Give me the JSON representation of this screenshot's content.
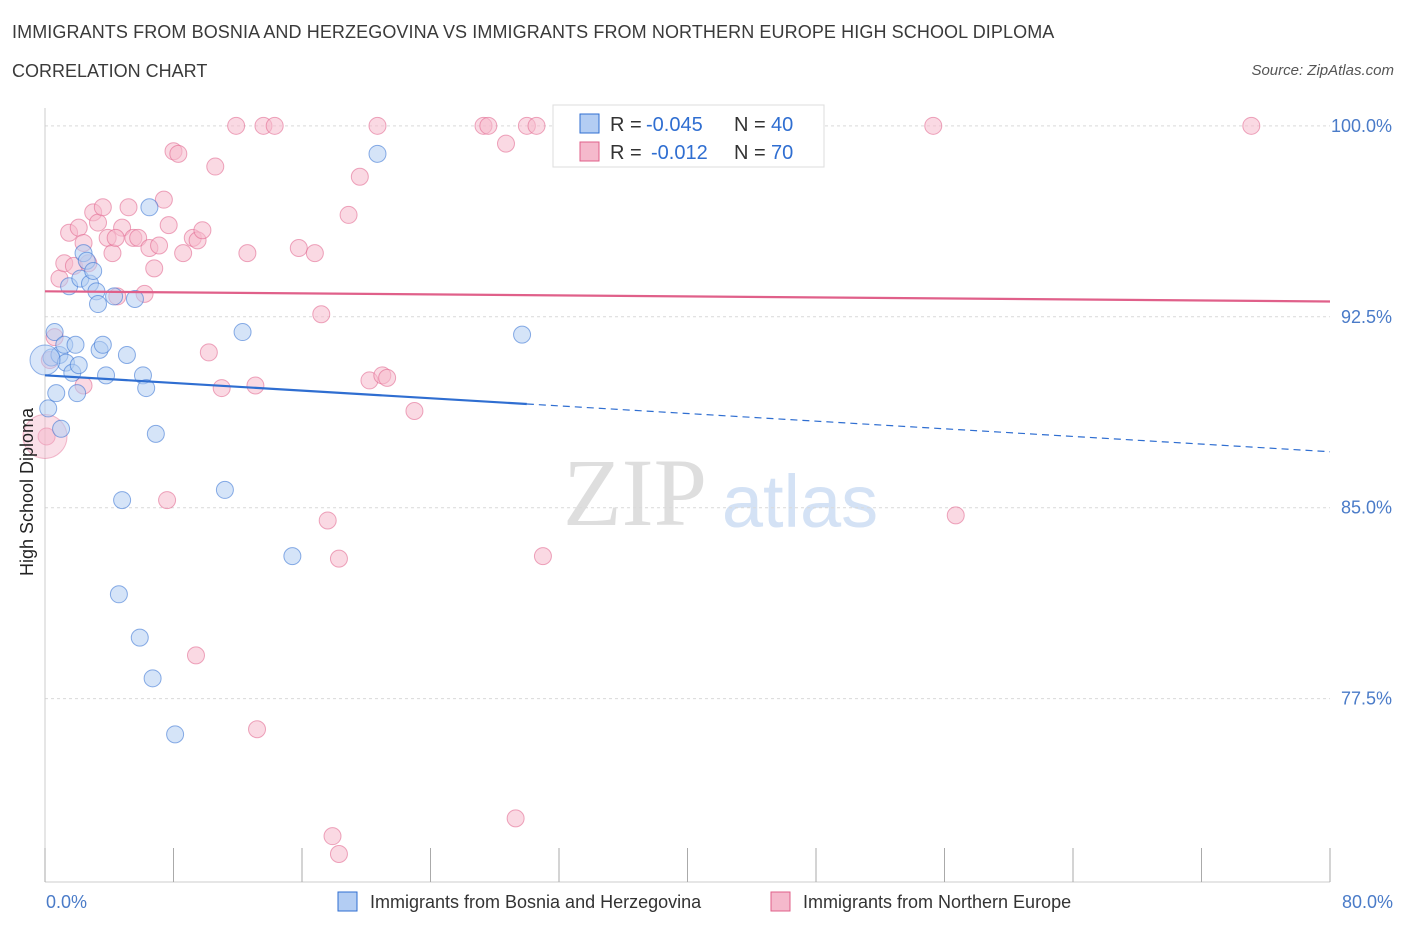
{
  "title_line1": "IMMIGRANTS FROM BOSNIA AND HERZEGOVINA VS IMMIGRANTS FROM NORTHERN EUROPE HIGH SCHOOL DIPLOMA",
  "title_line2": "CORRELATION CHART",
  "source": "Source: ZipAtlas.com",
  "watermark": {
    "zip": "ZIP",
    "atlas": "atlas"
  },
  "colors": {
    "blue": "#2f6ed1",
    "blue_fill": "#b3cdf3",
    "pink": "#e0608a",
    "pink_fill": "#f5b9cc",
    "axis_text": "#4a7bc8"
  },
  "stats": {
    "blue": {
      "r_label": "R = ",
      "r_value": "-0.045",
      "n_label": "N = ",
      "n_value": "40"
    },
    "pink": {
      "r_label": "R = ",
      "r_value": "-0.012",
      "n_label": "N = ",
      "n_value": "70"
    }
  },
  "chart_data": {
    "type": "scatter",
    "xlabel": "",
    "ylabel": "High School Diploma",
    "x_tick_labels": [
      "0.0%",
      "80.0%"
    ],
    "y_tick_labels": [
      "100.0%",
      "92.5%",
      "85.0%",
      "77.5%"
    ],
    "y_ticks": [
      100.0,
      92.5,
      85.0,
      77.5
    ],
    "xlim": [
      0,
      80
    ],
    "ylim": [
      70.3,
      100.7
    ],
    "grid": true,
    "legend_position": "bottom",
    "series": [
      {
        "name": "Immigrants from Bosnia and Herzegovina",
        "color": "#2f6ed1",
        "points": [
          [
            0.2,
            88.9
          ],
          [
            0.4,
            90.9
          ],
          [
            0.6,
            91.9
          ],
          [
            0.7,
            89.5
          ],
          [
            0.9,
            91.0
          ],
          [
            1.0,
            88.1
          ],
          [
            1.2,
            91.4
          ],
          [
            1.3,
            90.7
          ],
          [
            1.5,
            93.7
          ],
          [
            1.7,
            90.3
          ],
          [
            1.9,
            91.4
          ],
          [
            2.0,
            89.5
          ],
          [
            2.2,
            94.0
          ],
          [
            2.4,
            95.0
          ],
          [
            2.6,
            94.7
          ],
          [
            2.8,
            93.8
          ],
          [
            3.0,
            94.3
          ],
          [
            3.2,
            93.5
          ],
          [
            3.3,
            93.0
          ],
          [
            3.4,
            91.2
          ],
          [
            3.6,
            91.4
          ],
          [
            3.8,
            90.2
          ],
          [
            4.3,
            93.3
          ],
          [
            4.6,
            81.6
          ],
          [
            4.8,
            85.3
          ],
          [
            5.1,
            91.0
          ],
          [
            5.6,
            93.2
          ],
          [
            6.1,
            90.2
          ],
          [
            6.3,
            89.7
          ],
          [
            6.5,
            96.8
          ],
          [
            6.7,
            78.3
          ],
          [
            6.9,
            87.9
          ],
          [
            8.1,
            76.1
          ],
          [
            11.2,
            85.7
          ],
          [
            12.3,
            91.9
          ],
          [
            5.9,
            79.9
          ],
          [
            15.4,
            83.1
          ],
          [
            20.7,
            98.9
          ],
          [
            29.7,
            91.8
          ],
          [
            2.1,
            90.6
          ]
        ],
        "trend": {
          "x0": 0,
          "y0": 90.2,
          "x_solid_end": 30,
          "x1": 80,
          "y1": 87.2
        }
      },
      {
        "name": "Immigrants from Northern Europe",
        "color": "#e0608a",
        "points": [
          [
            0.1,
            87.8
          ],
          [
            0.3,
            90.8
          ],
          [
            0.6,
            91.7
          ],
          [
            0.9,
            94.0
          ],
          [
            1.2,
            94.6
          ],
          [
            1.5,
            95.8
          ],
          [
            1.8,
            94.5
          ],
          [
            2.1,
            96.0
          ],
          [
            2.4,
            95.4
          ],
          [
            2.7,
            94.6
          ],
          [
            3.0,
            96.6
          ],
          [
            3.3,
            96.2
          ],
          [
            3.6,
            96.8
          ],
          [
            3.9,
            95.6
          ],
          [
            4.2,
            95.0
          ],
          [
            4.5,
            93.3
          ],
          [
            4.8,
            96.0
          ],
          [
            5.2,
            96.8
          ],
          [
            5.5,
            95.6
          ],
          [
            5.8,
            95.6
          ],
          [
            6.2,
            93.4
          ],
          [
            6.5,
            95.2
          ],
          [
            6.8,
            94.4
          ],
          [
            7.1,
            95.3
          ],
          [
            7.4,
            97.1
          ],
          [
            7.7,
            96.1
          ],
          [
            8.0,
            99.0
          ],
          [
            8.3,
            98.9
          ],
          [
            8.6,
            95.0
          ],
          [
            9.2,
            95.6
          ],
          [
            9.5,
            95.5
          ],
          [
            9.8,
            95.9
          ],
          [
            10.2,
            91.1
          ],
          [
            10.6,
            98.4
          ],
          [
            11.0,
            89.7
          ],
          [
            11.9,
            100.0
          ],
          [
            12.6,
            95.0
          ],
          [
            13.1,
            89.8
          ],
          [
            13.6,
            100.0
          ],
          [
            14.3,
            100.0
          ],
          [
            15.8,
            95.2
          ],
          [
            16.8,
            95.0
          ],
          [
            17.2,
            92.6
          ],
          [
            17.6,
            84.5
          ],
          [
            18.3,
            83.0
          ],
          [
            18.9,
            96.5
          ],
          [
            19.6,
            98.0
          ],
          [
            20.2,
            90.0
          ],
          [
            20.7,
            100.0
          ],
          [
            21.0,
            90.2
          ],
          [
            21.3,
            90.1
          ],
          [
            23.0,
            88.8
          ],
          [
            27.3,
            100.0
          ],
          [
            27.6,
            100.0
          ],
          [
            28.7,
            99.3
          ],
          [
            30.0,
            100.0
          ],
          [
            30.6,
            100.0
          ],
          [
            31.0,
            83.1
          ],
          [
            33.1,
            100.0
          ],
          [
            55.3,
            100.0
          ],
          [
            56.7,
            84.7
          ],
          [
            75.1,
            100.0
          ],
          [
            7.6,
            85.3
          ],
          [
            9.4,
            79.2
          ],
          [
            13.2,
            76.3
          ],
          [
            29.3,
            72.8
          ],
          [
            18.3,
            71.4
          ],
          [
            4.4,
            95.6
          ],
          [
            2.4,
            89.8
          ],
          [
            17.9,
            72.1
          ]
        ],
        "trend": {
          "x0": 0,
          "y0": 93.5,
          "x1": 80,
          "y1": 93.1
        }
      }
    ]
  }
}
